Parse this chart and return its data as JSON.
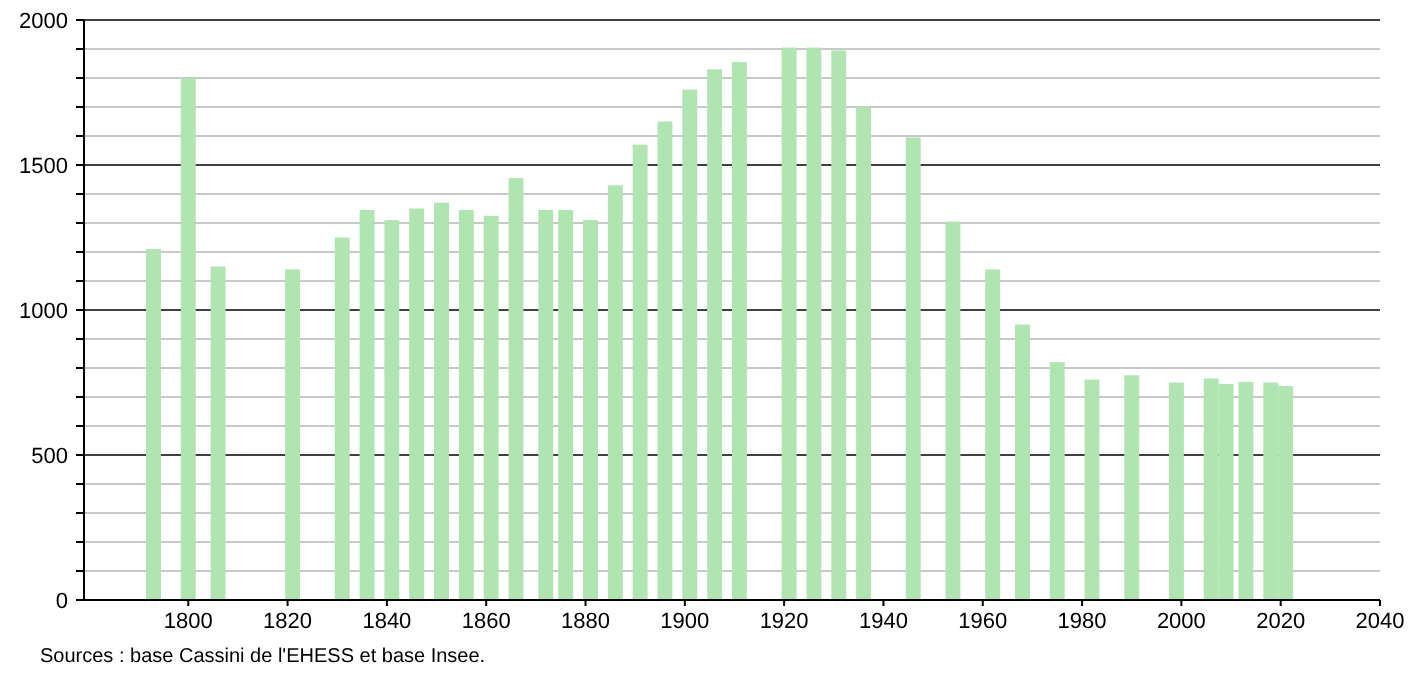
{
  "chart_data": {
    "type": "bar",
    "color": "#b0e4b0",
    "x": [
      1793,
      1800,
      1806,
      1821,
      1831,
      1836,
      1841,
      1846,
      1851,
      1856,
      1861,
      1866,
      1872,
      1876,
      1881,
      1886,
      1891,
      1896,
      1901,
      1906,
      1911,
      1921,
      1926,
      1931,
      1936,
      1946,
      1954,
      1962,
      1968,
      1975,
      1982,
      1990,
      1999,
      2006,
      2009,
      2013,
      2018,
      2021
    ],
    "values": [
      1210,
      1800,
      1150,
      1140,
      1250,
      1345,
      1310,
      1350,
      1370,
      1345,
      1325,
      1455,
      1345,
      1345,
      1310,
      1430,
      1570,
      1650,
      1760,
      1830,
      1855,
      1905,
      1905,
      1895,
      1700,
      1595,
      1305,
      1140,
      950,
      820,
      760,
      775,
      750,
      764,
      745,
      752,
      750,
      738
    ],
    "xlim": [
      1779,
      2040
    ],
    "xticks": [
      1800,
      1820,
      1840,
      1860,
      1880,
      1900,
      1920,
      1940,
      1960,
      1980,
      2000,
      2020,
      2040
    ],
    "ylim": [
      0,
      2000
    ],
    "yticks": [
      0,
      {
        "value": 100,
        "label": null
      },
      {
        "value": 200,
        "label": null
      },
      {
        "value": 300,
        "label": null
      },
      {
        "value": 400,
        "label": null
      },
      500,
      {
        "value": 600,
        "label": null
      },
      {
        "value": 700,
        "label": null
      },
      {
        "value": 800,
        "label": null
      },
      {
        "value": 900,
        "label": null
      },
      1000,
      {
        "value": 1100,
        "label": null
      },
      {
        "value": 1200,
        "label": null
      },
      {
        "value": 1300,
        "label": null
      },
      {
        "value": 1400,
        "label": null
      },
      1500,
      {
        "value": 1600,
        "label": null
      },
      {
        "value": 1700,
        "label": null
      },
      {
        "value": 1800,
        "label": null
      },
      {
        "value": 1900,
        "label": null
      },
      2000
    ],
    "grid": "y",
    "annotations": [
      "Sources : base Cassini de l'EHESS et base Insee."
    ]
  }
}
